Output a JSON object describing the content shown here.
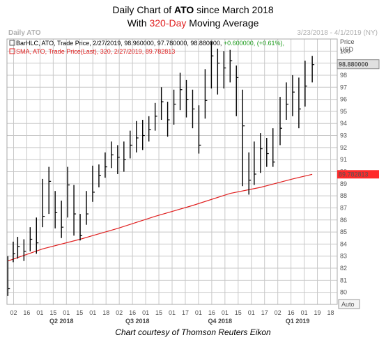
{
  "title": {
    "line1_pre": "Daily Chart of ",
    "line1_bold": "ATO",
    "line1_post": " since March 2018",
    "line2_pre": "With ",
    "line2_red": "320-Day",
    "line2_post": " Moving Average"
  },
  "header": {
    "left": "Daily ATO",
    "right": "3/23/2018 - 4/1/2019 (NY)"
  },
  "legend": {
    "bar": {
      "text": "BarHLC, ATO, Trade Price, 2/27/2019, 98.960000, 97.780000, 98.880000,",
      "change": "+0.600000, (+0.61%),"
    },
    "sma": {
      "text": "SMA, ATO, Trade Price(Last), 320, 2/27/2019, 89.782813"
    }
  },
  "axis_unit": {
    "line1": "Price",
    "line2": "USD"
  },
  "auto_button": "Auto",
  "caption": "Chart courtesy of Thomson Reuters Eikon",
  "colors": {
    "bars": "#000000",
    "sma": "#e02020",
    "grid": "#c8c8c8",
    "price_label_bg": "#e0e0e0",
    "sma_label_bg": "#ff2a2a",
    "change_green": "#1a9a1a"
  },
  "chart_data": {
    "type": "line",
    "title": "Daily Chart of ATO since March 2018",
    "subtitle": "With 320-Day Moving Average",
    "ylabel": "Price USD",
    "ylim": [
      79,
      101
    ],
    "y_ticks": [
      80,
      81,
      82,
      83,
      84,
      85,
      86,
      87,
      88,
      89,
      90,
      91,
      92,
      93,
      94,
      95,
      96,
      97,
      98,
      99,
      100
    ],
    "x_ticks": [
      "02",
      "16",
      "01",
      "15",
      "01",
      "15",
      "01",
      "18",
      "02",
      "16",
      "01",
      "15",
      "01",
      "17",
      "01",
      "16",
      "01",
      "15",
      "01",
      "17",
      "02",
      "16",
      "01",
      "19",
      "18"
    ],
    "quarters": [
      "Q2 2018",
      "Q3 2018",
      "Q4 2018",
      "Q1 2019"
    ],
    "last_price": "98.880000",
    "last_sma": "89.782813",
    "series": [
      {
        "name": "ATO",
        "style": "BarHLC",
        "x": [
          "3/23/2018",
          "3/29/2018",
          "4/3/2018",
          "4/10/2018",
          "4/17/2018",
          "4/24/2018",
          "5/1/2018",
          "5/8/2018",
          "5/15/2018",
          "5/22/2018",
          "5/29/2018",
          "6/5/2018",
          "6/12/2018",
          "6/19/2018",
          "6/26/2018",
          "7/3/2018",
          "7/10/2018",
          "7/17/2018",
          "7/24/2018",
          "7/31/2018",
          "8/7/2018",
          "8/14/2018",
          "8/21/2018",
          "8/28/2018",
          "9/4/2018",
          "9/11/2018",
          "9/18/2018",
          "9/25/2018",
          "10/2/2018",
          "10/9/2018",
          "10/16/2018",
          "10/23/2018",
          "10/30/2018",
          "11/6/2018",
          "11/13/2018",
          "11/20/2018",
          "11/27/2018",
          "12/4/2018",
          "12/11/2018",
          "12/18/2018",
          "12/24/2018",
          "12/31/2018",
          "1/7/2019",
          "1/14/2019",
          "1/22/2019",
          "1/29/2019",
          "2/5/2019",
          "2/12/2019",
          "2/19/2019",
          "2/27/2019"
        ],
        "close": [
          80.3,
          83.2,
          83.8,
          83.4,
          84.4,
          84.1,
          86.3,
          89.2,
          86.6,
          85.4,
          88.9,
          86.5,
          84.7,
          86.5,
          88.3,
          89.7,
          90.4,
          91.4,
          91.2,
          91.0,
          92.2,
          92.8,
          93.0,
          93.5,
          94.6,
          95.8,
          94.3,
          95.6,
          96.8,
          96.0,
          95.2,
          92.2,
          95.9,
          99.6,
          99.0,
          98.6,
          99.2,
          97.8,
          93.8,
          89.3,
          89.8,
          91.9,
          91.5,
          90.8,
          93.6,
          95.6,
          96.6,
          95.2,
          97.1,
          98.88
        ],
        "high": [
          83.0,
          84.2,
          84.6,
          84.4,
          85.4,
          86.2,
          89.4,
          90.4,
          88.4,
          87.6,
          90.4,
          88.9,
          86.5,
          88.4,
          90.5,
          90.6,
          91.6,
          92.5,
          92.2,
          92.5,
          93.4,
          94.2,
          94.3,
          94.6,
          95.7,
          97.0,
          95.8,
          96.8,
          98.2,
          97.6,
          96.8,
          95.5,
          98.5,
          100.8,
          100.2,
          100.0,
          100.1,
          98.8,
          96.8,
          91.6,
          92.5,
          93.2,
          92.8,
          93.6,
          96.2,
          97.4,
          98.0,
          97.8,
          99.2,
          99.6
        ],
        "low": [
          79.7,
          82.5,
          82.8,
          82.6,
          83.4,
          83.2,
          85.4,
          86.5,
          85.3,
          84.5,
          86.2,
          84.7,
          84.3,
          85.6,
          87.5,
          88.7,
          89.5,
          90.3,
          89.8,
          90.0,
          91.1,
          91.6,
          91.8,
          92.5,
          93.4,
          94.3,
          92.9,
          93.9,
          95.1,
          94.5,
          93.6,
          91.5,
          94.4,
          96.9,
          96.4,
          96.9,
          97.4,
          94.6,
          88.8,
          88.1,
          88.9,
          89.9,
          90.4,
          90.4,
          92.2,
          94.3,
          94.6,
          93.6,
          95.4,
          97.4
        ]
      },
      {
        "name": "SMA",
        "style": "line",
        "x": [
          "3/23/2018",
          "5/1/2018",
          "6/12/2018",
          "7/24/2018",
          "9/4/2018",
          "10/16/2018",
          "11/27/2018",
          "12/31/2018",
          "2/5/2019",
          "2/27/2019"
        ],
        "values": [
          82.6,
          83.6,
          84.4,
          85.3,
          86.3,
          87.2,
          88.2,
          88.7,
          89.4,
          89.78
        ]
      }
    ]
  }
}
